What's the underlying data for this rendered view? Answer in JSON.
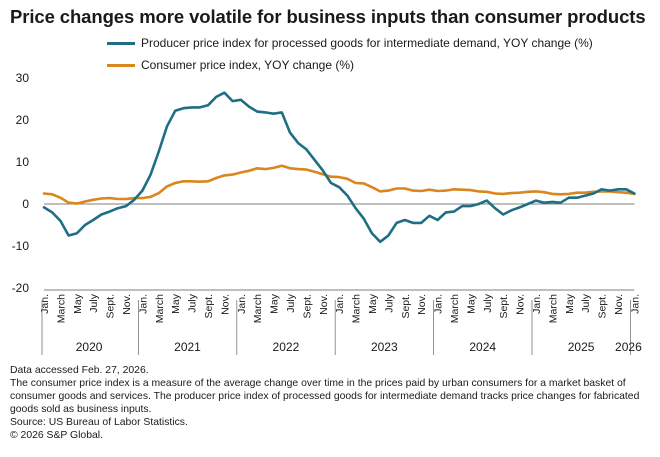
{
  "chart_data": {
    "type": "line",
    "title": "Price changes more volatile for business inputs than consumer products",
    "xlabel": "",
    "ylabel": "",
    "ylim": [
      -20,
      30
    ],
    "yticks": [
      30,
      20,
      10,
      0,
      -10,
      -20
    ],
    "grid": false,
    "legend_position": "top-left",
    "month_labels": [
      "Jan.",
      "March",
      "May",
      "July",
      "Sept.",
      "Nov."
    ],
    "final_month_label": "Jan.",
    "years": [
      "2020",
      "2021",
      "2022",
      "2023",
      "2024",
      "2025",
      "2026"
    ],
    "start": "2020-01",
    "series": [
      {
        "name": "Producer price index for processed goods for intermediate demand, YOY change (%)",
        "color": "#1f6e84",
        "values": [
          -0.8,
          -2.0,
          -4.0,
          -7.5,
          -7.0,
          -5.0,
          -3.8,
          -2.5,
          -1.8,
          -1.0,
          -0.5,
          1.0,
          3.2,
          7.0,
          12.5,
          18.5,
          22.2,
          22.8,
          23.0,
          23.0,
          23.5,
          25.5,
          26.5,
          24.5,
          24.8,
          23.2,
          22.0,
          21.8,
          21.5,
          21.8,
          17.0,
          14.5,
          13.0,
          10.5,
          8.0,
          5.0,
          4.0,
          2.0,
          -1.0,
          -3.5,
          -7.0,
          -9.0,
          -7.5,
          -4.5,
          -3.8,
          -4.5,
          -4.5,
          -2.8,
          -3.8,
          -2.0,
          -1.8,
          -0.5,
          -0.5,
          0.0,
          0.8,
          -1.0,
          -2.5,
          -1.5,
          -0.8,
          0.0,
          0.8,
          0.3,
          0.5,
          0.3,
          1.5,
          1.5,
          2.0,
          2.5,
          3.5,
          3.2,
          3.5,
          3.5,
          2.5
        ]
      },
      {
        "name": "Consumer price index, YOY change (%)",
        "color": "#d9861c",
        "values": [
          2.5,
          2.3,
          1.5,
          0.3,
          0.1,
          0.6,
          1.0,
          1.3,
          1.4,
          1.2,
          1.2,
          1.4,
          1.4,
          1.7,
          2.6,
          4.2,
          5.0,
          5.4,
          5.4,
          5.3,
          5.4,
          6.2,
          6.8,
          7.0,
          7.5,
          7.9,
          8.5,
          8.3,
          8.6,
          9.1,
          8.5,
          8.3,
          8.2,
          7.7,
          7.1,
          6.5,
          6.4,
          6.0,
          5.0,
          4.9,
          4.0,
          3.0,
          3.2,
          3.7,
          3.7,
          3.2,
          3.1,
          3.4,
          3.1,
          3.2,
          3.5,
          3.4,
          3.3,
          3.0,
          2.9,
          2.5,
          2.4,
          2.6,
          2.7,
          2.9,
          3.0,
          2.8,
          2.4,
          2.3,
          2.4,
          2.7,
          2.7,
          2.9,
          3.0,
          3.0,
          2.8,
          2.7,
          2.4
        ]
      }
    ]
  },
  "footer": {
    "line1": "Data accessed Feb. 27, 2026.",
    "line2": "The consumer price index is a measure of the average change over time in the prices paid by urban consumers for a market basket of consumer goods and services. The producer price index of processed goods for intermediate demand tracks price changes for fabricated goods sold as business inputs.",
    "line3": "Source: US Bureau of Labor Statistics.",
    "line4": "© 2026 S&P Global."
  }
}
